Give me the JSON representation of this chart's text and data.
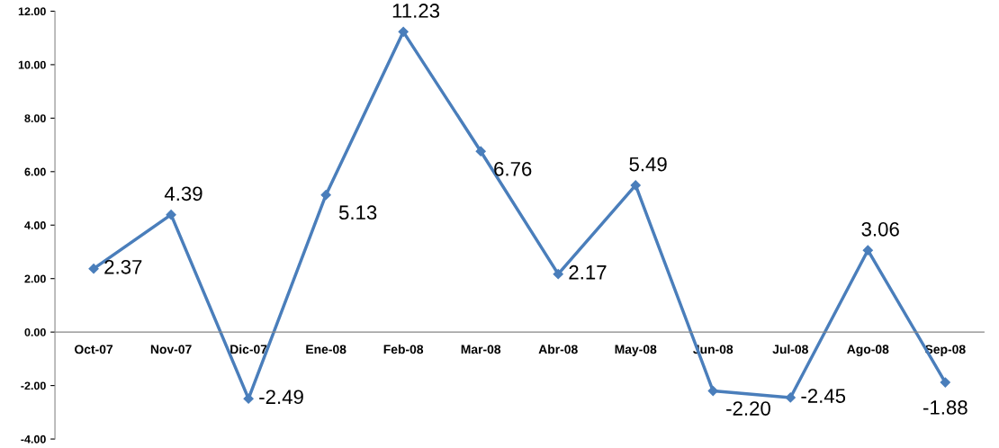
{
  "chart_data": {
    "type": "line",
    "categories": [
      "Oct-07",
      "Nov-07",
      "Dic-07",
      "Ene-08",
      "Feb-08",
      "Mar-08",
      "Abr-08",
      "May-08",
      "Jun-08",
      "Jul-08",
      "Ago-08",
      "Sep-08"
    ],
    "series": [
      {
        "color": "#4a7ebb",
        "values": [
          2.37,
          4.39,
          -2.49,
          5.13,
          11.23,
          6.76,
          2.17,
          5.49,
          -2.2,
          -2.45,
          3.06,
          -1.88
        ],
        "value_labels": [
          "2.37",
          "4.39",
          "-2.49",
          "5.13",
          "11.23",
          "6.76",
          "2.17",
          "5.49",
          "-2.20",
          "-2.45",
          "3.06",
          "-1.88"
        ]
      }
    ],
    "ylim": [
      -4,
      12
    ],
    "yticks": [
      {
        "value": -4,
        "label": "-4.00"
      },
      {
        "value": -2,
        "label": "-2.00"
      },
      {
        "value": 0,
        "label": "0.00"
      },
      {
        "value": 2,
        "label": "2.00"
      },
      {
        "value": 4,
        "label": "4.00"
      },
      {
        "value": 6,
        "label": "6.00"
      },
      {
        "value": 8,
        "label": "8.00"
      },
      {
        "value": 10,
        "label": "10.00"
      },
      {
        "value": 12,
        "label": "12.00"
      }
    ],
    "marker": "diamond",
    "line_style": "solid",
    "grid": false,
    "legend": false
  }
}
